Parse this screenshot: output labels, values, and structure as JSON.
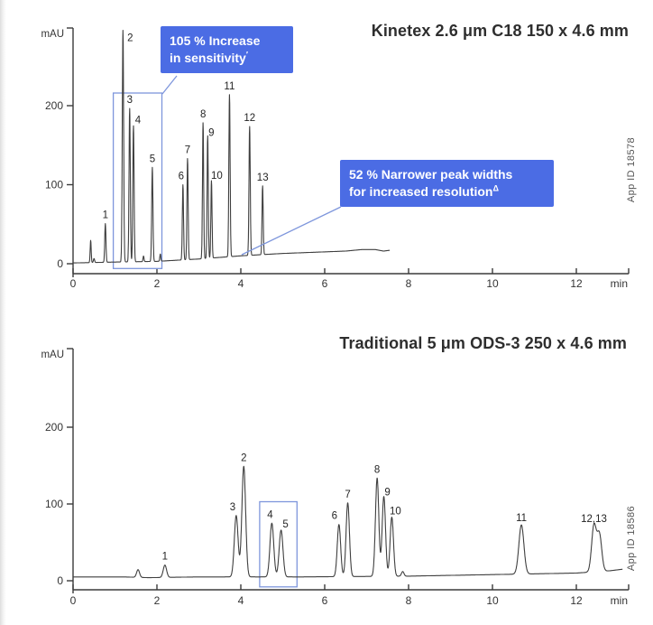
{
  "colors": {
    "page_bg": "#ffffff",
    "callout_bg": "#4b6ce4",
    "callout_text": "#ffffff",
    "highlight_blue": "#7e96dc",
    "trace": "#3f3f3f",
    "axis": "#3a3a3a",
    "tick_text": "#333333",
    "title_text": "#2e2e2e",
    "muted_text": "#555555"
  },
  "annotations": {
    "sensitivity_callout": {
      "line1": "105 % Increase",
      "line2": "in sensitivity",
      "sup": "′"
    },
    "resolution_callout": {
      "line1": "52 % Narrower peak widths",
      "line2": "for increased resolution",
      "sup": "Δ"
    }
  },
  "chart_data": [
    {
      "type": "line",
      "title": "Kinetex 2.6 μm C18 150 x 4.6 mm",
      "app_id": "App ID 18578",
      "xlabel": "min",
      "ylabel": "mAU",
      "xlim": [
        0,
        13.2
      ],
      "ylim": [
        0,
        300
      ],
      "x_ticks": [
        0,
        2,
        4,
        6,
        8,
        10,
        12
      ],
      "y_ticks": [
        0,
        100,
        200
      ],
      "grid": false,
      "legend": "none",
      "trace_end_min": 7.55,
      "baseline_mAU": [
        [
          0,
          1
        ],
        [
          0.9,
          2
        ],
        [
          2,
          3
        ],
        [
          3,
          6
        ],
        [
          4,
          10
        ],
        [
          5,
          13
        ],
        [
          6,
          15
        ],
        [
          6.5,
          16
        ],
        [
          6.9,
          18
        ],
        [
          7.2,
          18
        ],
        [
          7.4,
          16
        ],
        [
          7.55,
          17
        ]
      ],
      "peaks": [
        {
          "t": 0.42,
          "mAU": 28,
          "w": 0.012
        },
        {
          "t": 0.5,
          "mAU": 5,
          "w": 0.014
        },
        {
          "label": "1",
          "t": 0.77,
          "mAU": 49,
          "w": 0.014
        },
        {
          "label": "2",
          "t": 1.19,
          "mAU": 293,
          "w": 0.016,
          "dx": 8,
          "dy": 18
        },
        {
          "label": "3",
          "t": 1.35,
          "mAU": 194,
          "w": 0.015
        },
        {
          "label": "4",
          "t": 1.44,
          "mAU": 172,
          "w": 0.015,
          "dx": 5,
          "dy": 3
        },
        {
          "t": 1.68,
          "mAU": 7,
          "w": 0.012
        },
        {
          "label": "5",
          "t": 1.89,
          "mAU": 119,
          "w": 0.015
        },
        {
          "t": 2.08,
          "mAU": 9,
          "w": 0.012
        },
        {
          "label": "6",
          "t": 2.62,
          "mAU": 95,
          "w": 0.014,
          "dx": -2
        },
        {
          "label": "7",
          "t": 2.73,
          "mAU": 128,
          "w": 0.014
        },
        {
          "label": "8",
          "t": 3.1,
          "mAU": 172,
          "w": 0.014
        },
        {
          "label": "9",
          "t": 3.21,
          "mAU": 155,
          "w": 0.014,
          "dx": 4,
          "dy": 6
        },
        {
          "label": "10",
          "t": 3.3,
          "mAU": 98,
          "w": 0.014,
          "dx": 6,
          "dy": 4
        },
        {
          "label": "11",
          "t": 3.73,
          "mAU": 205,
          "w": 0.015
        },
        {
          "label": "12",
          "t": 4.21,
          "mAU": 163,
          "w": 0.015
        },
        {
          "label": "13",
          "t": 4.52,
          "mAU": 87,
          "w": 0.014
        }
      ],
      "highlight_rect": {
        "t0": 0.96,
        "t1": 2.12,
        "v0": -6,
        "v1": 216
      }
    },
    {
      "type": "line",
      "title": "Traditional 5 μm ODS-3 250 x 4.6 mm",
      "app_id": "App ID 18586",
      "xlabel": "min",
      "ylabel": "mAU",
      "xlim": [
        0,
        13.2
      ],
      "ylim": [
        0,
        300
      ],
      "x_ticks": [
        0,
        2,
        4,
        6,
        8,
        10,
        12
      ],
      "y_ticks": [
        0,
        100,
        200
      ],
      "grid": false,
      "legend": "none",
      "trace_end_min": 13.1,
      "baseline_mAU": [
        [
          0,
          5
        ],
        [
          1.2,
          5
        ],
        [
          1.8,
          4
        ],
        [
          3,
          5
        ],
        [
          5.5,
          5
        ],
        [
          8,
          6
        ],
        [
          9,
          7
        ],
        [
          10,
          8
        ],
        [
          11,
          9
        ],
        [
          12,
          10
        ],
        [
          12.8,
          13
        ],
        [
          13.1,
          15
        ]
      ],
      "peaks": [
        {
          "t": 1.55,
          "mAU": 10,
          "w": 0.035
        },
        {
          "label": "1",
          "t": 2.19,
          "mAU": 16,
          "w": 0.04
        },
        {
          "label": "3",
          "t": 3.89,
          "mAU": 80,
          "w": 0.045,
          "dx": -4
        },
        {
          "label": "2",
          "t": 4.07,
          "mAU": 144,
          "w": 0.045
        },
        {
          "label": "4",
          "t": 4.74,
          "mAU": 70,
          "w": 0.045,
          "dx": -2
        },
        {
          "label": "5",
          "t": 4.96,
          "mAU": 61,
          "w": 0.045,
          "dx": 5,
          "dy": 3
        },
        {
          "label": "6",
          "t": 6.34,
          "mAU": 68,
          "w": 0.04,
          "dx": -5
        },
        {
          "label": "7",
          "t": 6.55,
          "mAU": 96,
          "w": 0.04
        },
        {
          "label": "8",
          "t": 7.25,
          "mAU": 128,
          "w": 0.04
        },
        {
          "label": "9",
          "t": 7.41,
          "mAU": 104,
          "w": 0.04,
          "dx": 4,
          "dy": 5
        },
        {
          "label": "10",
          "t": 7.6,
          "mAU": 77,
          "w": 0.04,
          "dx": 4,
          "dy": 3
        },
        {
          "t": 7.86,
          "mAU": 6,
          "w": 0.03
        },
        {
          "label": "11",
          "t": 10.69,
          "mAU": 64,
          "w": 0.06,
          "dy": 2
        },
        {
          "label": "12,13",
          "t": 12.42,
          "mAU": 60,
          "w": 0.055,
          "dy": 2
        },
        {
          "t": 12.55,
          "mAU": 48,
          "w": 0.055
        }
      ],
      "highlight_rect": {
        "t0": 4.45,
        "t1": 5.34,
        "v0": -8,
        "v1": 103
      }
    }
  ]
}
